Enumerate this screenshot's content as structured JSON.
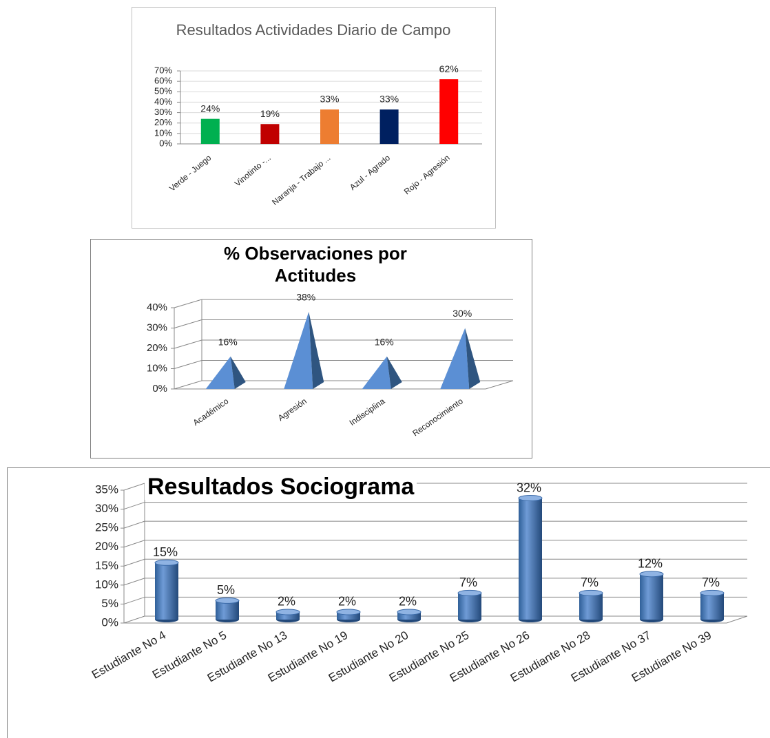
{
  "chart_data": [
    {
      "type": "bar",
      "title": "Resultados Actividades Diario de Campo",
      "categories": [
        "Verde - Juego",
        "Vinotinto -...",
        "Naranja - Trabajo ...",
        "Azul - Agrado",
        "Rojo - Agresión"
      ],
      "values": [
        24,
        19,
        33,
        33,
        62
      ],
      "value_labels": [
        "24%",
        "19%",
        "33%",
        "33%",
        "62%"
      ],
      "colors": [
        "#00b050",
        "#c00000",
        "#ed7d31",
        "#002060",
        "#ff0000"
      ],
      "ylim": [
        0,
        70
      ],
      "yticks": [
        {
          "value": 0,
          "label": "0%"
        },
        {
          "value": 10,
          "label": "10%"
        },
        {
          "value": 20,
          "label": "20%"
        },
        {
          "value": 30,
          "label": "30%"
        },
        {
          "value": 40,
          "label": "40%"
        },
        {
          "value": 50,
          "label": "50%"
        },
        {
          "value": 60,
          "label": "60%"
        },
        {
          "value": 70,
          "label": "70%"
        }
      ],
      "grid": true
    },
    {
      "type": "pyramid",
      "title": "% Observaciones por Actitudes",
      "categories": [
        "Académico",
        "Agresión",
        "Indisciplina",
        "Reconocimiento"
      ],
      "values": [
        16,
        38,
        16,
        30
      ],
      "value_labels": [
        "16%",
        "38%",
        "16%",
        "30%"
      ],
      "color": "#4f81bd",
      "ylim": [
        0,
        40
      ],
      "yticks": [
        {
          "value": 0,
          "label": "0%"
        },
        {
          "value": 10,
          "label": "10%"
        },
        {
          "value": 20,
          "label": "20%"
        },
        {
          "value": 30,
          "label": "30%"
        },
        {
          "value": 40,
          "label": "40%"
        }
      ],
      "grid": true
    },
    {
      "type": "cylinder",
      "title": "Resultados Sociograma",
      "categories": [
        "Estudiante No 4",
        "Estudiante No 5",
        "Estudiante No 13",
        "Estudiante No 19",
        "Estudiante No 20",
        "Estudiante No 25",
        "Estudiante No 26",
        "Estudiante No 28",
        "Estudiante No 37",
        "Estudiante No 39"
      ],
      "values": [
        15,
        5,
        2,
        2,
        2,
        7,
        32,
        7,
        12,
        7
      ],
      "value_labels": [
        "15%",
        "5%",
        "2%",
        "2%",
        "2%",
        "7%",
        "32%",
        "7%",
        "12%",
        "7%"
      ],
      "color": "#4f81bd",
      "ylim": [
        0,
        35
      ],
      "yticks": [
        {
          "value": 0,
          "label": "0%"
        },
        {
          "value": 5,
          "label": "5%"
        },
        {
          "value": 10,
          "label": "10%"
        },
        {
          "value": 15,
          "label": "15%"
        },
        {
          "value": 20,
          "label": "20%"
        },
        {
          "value": 25,
          "label": "25%"
        },
        {
          "value": 30,
          "label": "30%"
        },
        {
          "value": 35,
          "label": "35%"
        }
      ],
      "grid": true
    }
  ]
}
